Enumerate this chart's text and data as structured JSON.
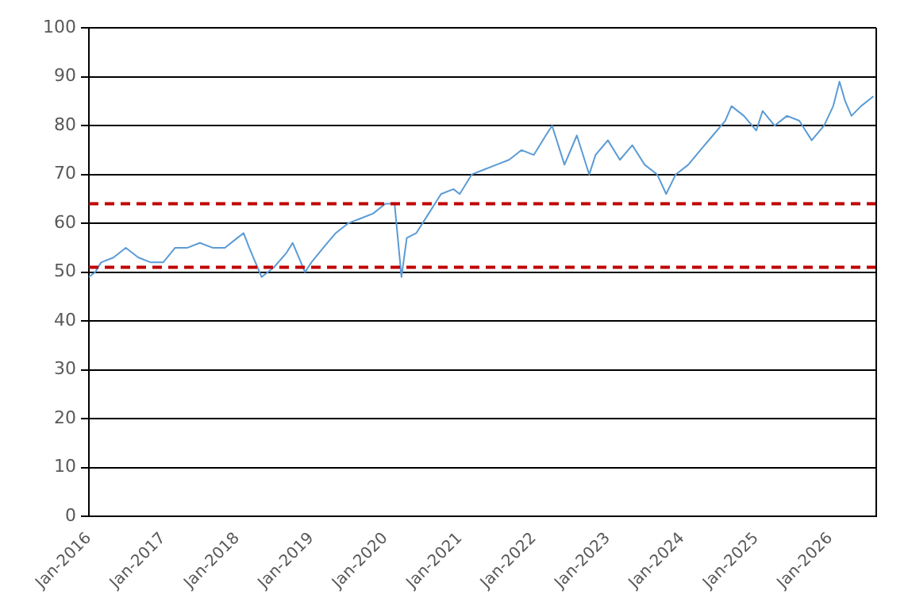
{
  "chart_data": {
    "type": "line",
    "x": [
      "2016-01-01",
      "2016-02-01",
      "2016-03-01",
      "2016-05-01",
      "2016-07-01",
      "2016-09-01",
      "2016-11-01",
      "2017-01-01",
      "2017-03-01",
      "2017-05-01",
      "2017-07-01",
      "2017-09-01",
      "2017-11-01",
      "2018-01-01",
      "2018-02-01",
      "2018-03-01",
      "2018-05-01",
      "2018-07-01",
      "2018-09-01",
      "2018-10-01",
      "2018-12-01",
      "2019-01-01",
      "2019-03-01",
      "2019-05-01",
      "2019-07-01",
      "2019-09-01",
      "2019-11-01",
      "2020-01-01",
      "2020-02-15",
      "2020-03-20",
      "2020-04-15",
      "2020-06-01",
      "2020-08-01",
      "2020-10-01",
      "2020-12-01",
      "2021-01-01",
      "2021-03-01",
      "2021-05-01",
      "2021-07-01",
      "2021-09-01",
      "2021-11-01",
      "2022-01-01",
      "2022-03-01",
      "2022-04-01",
      "2022-06-01",
      "2022-08-01",
      "2022-10-01",
      "2022-11-01",
      "2023-01-01",
      "2023-03-01",
      "2023-05-01",
      "2023-07-01",
      "2023-09-01",
      "2023-10-15",
      "2023-12-01",
      "2024-02-01",
      "2024-04-01",
      "2024-06-01",
      "2024-08-01",
      "2024-09-01",
      "2024-11-01",
      "2025-01-01",
      "2025-02-01",
      "2025-04-01",
      "2025-06-01",
      "2025-08-01",
      "2025-10-01",
      "2025-12-01",
      "2026-01-15",
      "2026-02-15",
      "2026-03-15",
      "2026-04-15",
      "2026-06-01",
      "2026-08-01"
    ],
    "series": [
      {
        "color": "#5b9bd5",
        "values": [
          49,
          50,
          52,
          53,
          55,
          53,
          52,
          52,
          55,
          55,
          56,
          55,
          55,
          57,
          58,
          55,
          49,
          51,
          54,
          56,
          50,
          52,
          55,
          58,
          60,
          61,
          62,
          64,
          64,
          49,
          57,
          58,
          62,
          66,
          67,
          66,
          70,
          71,
          72,
          73,
          75,
          74,
          78,
          80,
          72,
          78,
          70,
          74,
          77,
          73,
          76,
          72,
          70,
          66,
          70,
          72,
          75,
          78,
          81,
          84,
          82,
          79,
          83,
          80,
          82,
          81,
          77,
          80,
          84,
          89,
          85,
          82,
          84,
          86
        ]
      }
    ],
    "xlim": [
      "2016-01-01",
      "2026-08-15"
    ],
    "xticks": [
      {
        "value": "2016-01-01",
        "label": "Jan-2016"
      },
      {
        "value": "2017-01-01",
        "label": "Jan-2017"
      },
      {
        "value": "2018-01-01",
        "label": "Jan-2018"
      },
      {
        "value": "2019-01-01",
        "label": "Jan-2019"
      },
      {
        "value": "2020-01-01",
        "label": "Jan-2020"
      },
      {
        "value": "2021-01-01",
        "label": "Jan-2021"
      },
      {
        "value": "2022-01-01",
        "label": "Jan-2022"
      },
      {
        "value": "2023-01-01",
        "label": "Jan-2023"
      },
      {
        "value": "2024-01-01",
        "label": "Jan-2024"
      },
      {
        "value": "2025-01-01",
        "label": "Jan-2025"
      },
      {
        "value": "2026-01-01",
        "label": "Jan-2026"
      }
    ],
    "ylim": [
      0,
      100
    ],
    "yticks": [
      0,
      10,
      20,
      30,
      40,
      50,
      60,
      70,
      80,
      90,
      100
    ],
    "grid": "y",
    "marker": "none",
    "line_style": "solid",
    "ref_lines": [
      {
        "axis": "y",
        "value": 64,
        "color": "#c00000",
        "line_style": "dashed"
      },
      {
        "axis": "y",
        "value": 51,
        "color": "#c00000",
        "line_style": "dashed"
      }
    ]
  }
}
